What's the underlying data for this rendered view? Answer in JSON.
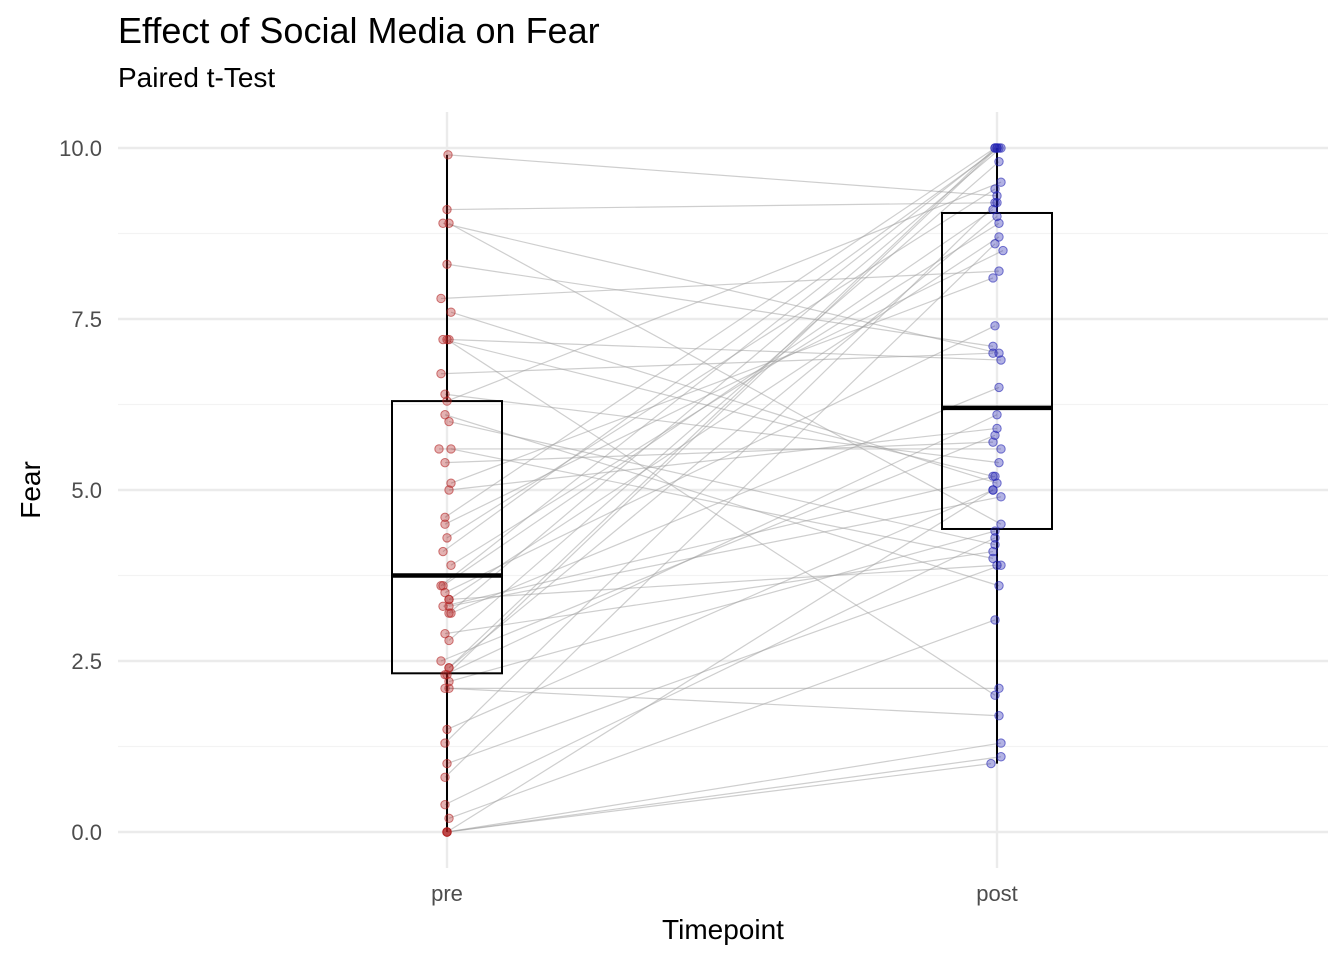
{
  "chart_data": {
    "type": "boxplot",
    "title": "Effect of Social Media on Fear",
    "subtitle": "Paired t-Test",
    "xlabel": "Timepoint",
    "ylabel": "Fear",
    "categories": [
      "pre",
      "post"
    ],
    "ylim": [
      -0.45,
      10.3
    ],
    "yticks": [
      0.0,
      2.5,
      5.0,
      7.5,
      10.0
    ],
    "ytick_labels": [
      "0.0",
      "2.5",
      "5.0",
      "7.5",
      "10.0"
    ],
    "grid": true,
    "colors": {
      "pre": "#b22222",
      "post": "#2222b2",
      "line": "#9e9e9e",
      "box": "#000000",
      "grid": "#ebebeb"
    },
    "boxes": [
      {
        "category": "pre",
        "q1": 2.32,
        "median": 3.75,
        "q3": 6.3,
        "whisker_low": 0.0,
        "whisker_high": 9.9
      },
      {
        "category": "post",
        "q1": 4.43,
        "median": 6.2,
        "q3": 9.05,
        "whisker_low": 1.0,
        "whisker_high": 10.0
      }
    ],
    "pairs": [
      [
        9.9,
        9.3
      ],
      [
        9.1,
        9.2
      ],
      [
        8.9,
        7.0
      ],
      [
        8.9,
        4.5
      ],
      [
        8.3,
        7.1
      ],
      [
        7.8,
        8.2
      ],
      [
        7.6,
        5.1
      ],
      [
        7.2,
        5.2
      ],
      [
        7.2,
        6.9
      ],
      [
        7.2,
        2.0
      ],
      [
        6.7,
        7.0
      ],
      [
        6.4,
        5.4
      ],
      [
        6.3,
        9.5
      ],
      [
        6.0,
        4.2
      ],
      [
        5.6,
        5.6
      ],
      [
        5.6,
        4.0
      ],
      [
        5.4,
        5.7
      ],
      [
        5.1,
        8.1
      ],
      [
        5.0,
        5.9
      ],
      [
        4.6,
        10.0
      ],
      [
        4.5,
        8.5
      ],
      [
        4.3,
        9.4
      ],
      [
        4.1,
        10.0
      ],
      [
        3.9,
        8.9
      ],
      [
        3.6,
        9.1
      ],
      [
        3.6,
        10.0
      ],
      [
        3.5,
        7.4
      ],
      [
        3.4,
        8.7
      ],
      [
        3.3,
        5.2
      ],
      [
        3.3,
        4.9
      ],
      [
        3.2,
        6.5
      ],
      [
        3.2,
        10.0
      ],
      [
        2.9,
        4.1
      ],
      [
        2.8,
        9.8
      ],
      [
        2.5,
        5.8
      ],
      [
        2.4,
        9.0
      ],
      [
        2.3,
        6.1
      ],
      [
        2.3,
        10.0
      ],
      [
        2.2,
        4.4
      ],
      [
        2.1,
        2.1
      ],
      [
        2.1,
        1.7
      ],
      [
        1.5,
        5.0
      ],
      [
        1.3,
        9.2
      ],
      [
        1.0,
        3.9
      ],
      [
        0.8,
        8.6
      ],
      [
        0.4,
        4.3
      ],
      [
        0.2,
        3.1
      ],
      [
        0.0,
        1.3
      ],
      [
        0.0,
        1.1
      ],
      [
        0.0,
        1.0
      ],
      [
        0.0,
        5.0
      ],
      [
        3.4,
        3.9
      ],
      [
        6.1,
        3.6
      ],
      [
        2.4,
        10.0
      ]
    ],
    "jitter": {
      "pre": [
        1,
        0,
        -4,
        2,
        0,
        -6,
        4,
        -4,
        2,
        0,
        -6,
        -2,
        0,
        2,
        -8,
        4,
        -2,
        4,
        2,
        -2,
        -2,
        0,
        -4,
        4,
        -4,
        -6,
        -2,
        2,
        -4,
        2,
        4,
        2,
        -2,
        2,
        -6,
        2,
        -2,
        0,
        2,
        -2,
        2,
        0,
        -2,
        0,
        -2,
        -2,
        2,
        0,
        0,
        0,
        0,
        2,
        -2,
        2
      ],
      "post": [
        0,
        -2,
        2,
        4,
        -4,
        2,
        0,
        -4,
        4,
        -2,
        -4,
        2,
        4,
        -2,
        4,
        -4,
        -4,
        -4,
        0,
        -2,
        6,
        -2,
        2,
        2,
        -4,
        0,
        -2,
        2,
        -2,
        4,
        2,
        4,
        -4,
        2,
        -2,
        0,
        0,
        0,
        -2,
        2,
        2,
        -4,
        0,
        4,
        -2,
        -2,
        -2,
        4,
        4,
        -6,
        -4,
        0,
        2,
        -2
      ]
    }
  }
}
